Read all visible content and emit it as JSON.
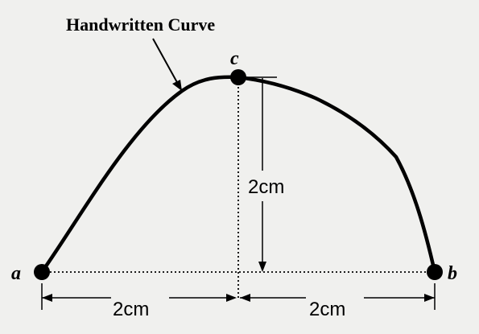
{
  "title": "Handwritten Curve",
  "points": {
    "a": {
      "label": "a"
    },
    "b": {
      "label": "b"
    },
    "c": {
      "label": "c"
    }
  },
  "dimensions": {
    "height": {
      "label": "2cm"
    },
    "left_width": {
      "label": "2cm"
    },
    "right_width": {
      "label": "2cm"
    }
  },
  "colors": {
    "ink": "#000000",
    "background": "#f0f0ee"
  }
}
